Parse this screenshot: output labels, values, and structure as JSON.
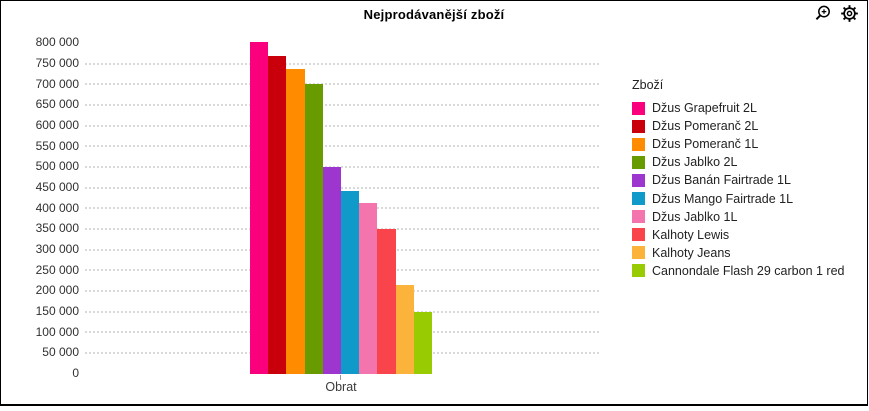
{
  "window": {
    "title": "Nejprodávanější zboží"
  },
  "toolbar": {
    "icons": [
      {
        "name": "zoom-in-icon"
      },
      {
        "name": "gear-icon"
      }
    ]
  },
  "chart_data": {
    "type": "bar",
    "title": "Nejprodávanější zboží",
    "xlabel": "Obrat",
    "ylabel": "",
    "categories": [
      "Obrat"
    ],
    "ylim": [
      0,
      800000
    ],
    "y_tick_step": 50000,
    "y_tick_labels": [
      "0",
      "50 000",
      "100 000",
      "150 000",
      "200 000",
      "250 000",
      "300 000",
      "350 000",
      "400 000",
      "450 000",
      "500 000",
      "550 000",
      "600 000",
      "650 000",
      "700 000",
      "750 000",
      "800 000"
    ],
    "grid": "horizontal-dotted",
    "legend_title": "Zboží",
    "legend_position": "right",
    "series": [
      {
        "name": "Džus Grapefruit 2L",
        "value": 805000,
        "color": "#FA007D"
      },
      {
        "name": "Džus Pomeranč 2L",
        "value": 772000,
        "color": "#C9000B"
      },
      {
        "name": "Džus Pomeranč 1L",
        "value": 740000,
        "color": "#FF8C00"
      },
      {
        "name": "Džus Jablko 2L",
        "value": 703000,
        "color": "#679B00"
      },
      {
        "name": "Džus Banán Fairtrade 1L",
        "value": 503000,
        "color": "#9C36CE"
      },
      {
        "name": "Džus Mango Fairtrade 1L",
        "value": 444000,
        "color": "#0F9ACA"
      },
      {
        "name": "Džus Jablko 1L",
        "value": 415000,
        "color": "#F474AE"
      },
      {
        "name": "Kalhoty Lewis",
        "value": 352000,
        "color": "#F9444B"
      },
      {
        "name": "Kalhoty Jeans",
        "value": 216000,
        "color": "#FCB33C"
      },
      {
        "name": "Cannondale Flash 29 carbon 1 red",
        "value": 152000,
        "color": "#98CB01"
      }
    ]
  }
}
